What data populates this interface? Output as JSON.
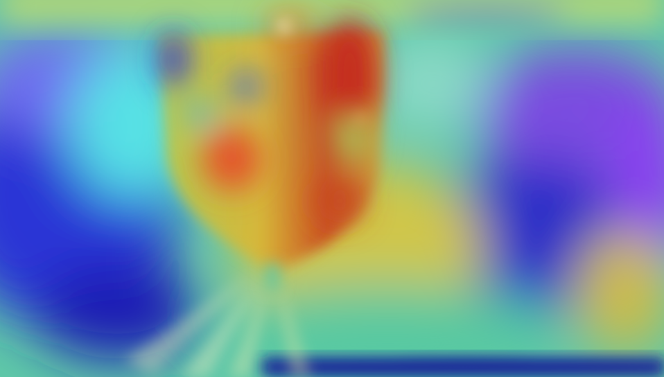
{
  "image": {
    "kind": "heatmap-overlay-photo",
    "subject_icon": "wine-glass-icon",
    "palette": {
      "deep_blue": "#1c1fb4",
      "blue": "#2f5bf0",
      "violet": "#7a4be0",
      "cyan": "#4fd7d8",
      "green": "#7fd08a",
      "yellow": "#d8c845",
      "orange": "#e07a2a",
      "red": "#c8301e"
    }
  }
}
